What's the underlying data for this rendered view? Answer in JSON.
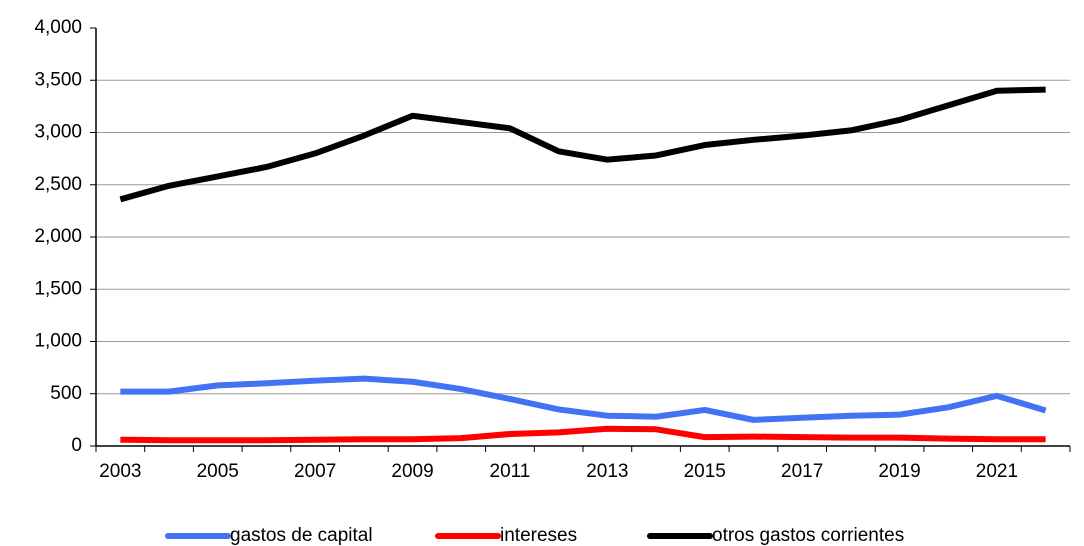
{
  "chart_data": {
    "type": "line",
    "categories": [
      "2003",
      null,
      "2005",
      null,
      "2007",
      null,
      "2009",
      null,
      "2011",
      null,
      "2013",
      null,
      "2015",
      null,
      "2017",
      null,
      "2019",
      null,
      "2021",
      null
    ],
    "series": [
      {
        "name": "gastos de capital",
        "color": "#4472f4",
        "values": [
          520,
          520,
          580,
          600,
          625,
          645,
          615,
          545,
          450,
          350,
          290,
          280,
          345,
          250,
          270,
          290,
          300,
          370,
          480,
          340
        ]
      },
      {
        "name": "intereses",
        "color": "#ff0000",
        "values": [
          60,
          55,
          55,
          55,
          60,
          65,
          65,
          75,
          115,
          130,
          165,
          160,
          85,
          90,
          85,
          80,
          80,
          70,
          65,
          65
        ]
      },
      {
        "name": "otros gastos corrientes",
        "color": "#000000",
        "values": [
          2360,
          2490,
          2580,
          2670,
          2800,
          2970,
          3160,
          3100,
          3040,
          2820,
          2740,
          2780,
          2880,
          2930,
          2970,
          3020,
          3120,
          3260,
          3400,
          3410
        ]
      }
    ],
    "ylim": [
      0,
      4000
    ],
    "yticks": [
      0,
      500,
      {
        "value": 1000,
        "label": "1,000"
      },
      {
        "value": 1500,
        "label": "1,500"
      },
      {
        "value": 2000,
        "label": "2,000"
      },
      {
        "value": 2500,
        "label": "2,500"
      },
      {
        "value": 3000,
        "label": "3,000"
      },
      {
        "value": 3500,
        "label": "3,500"
      },
      {
        "value": 4000,
        "label": "4,000"
      }
    ],
    "grid": true,
    "legend": "bottom"
  }
}
